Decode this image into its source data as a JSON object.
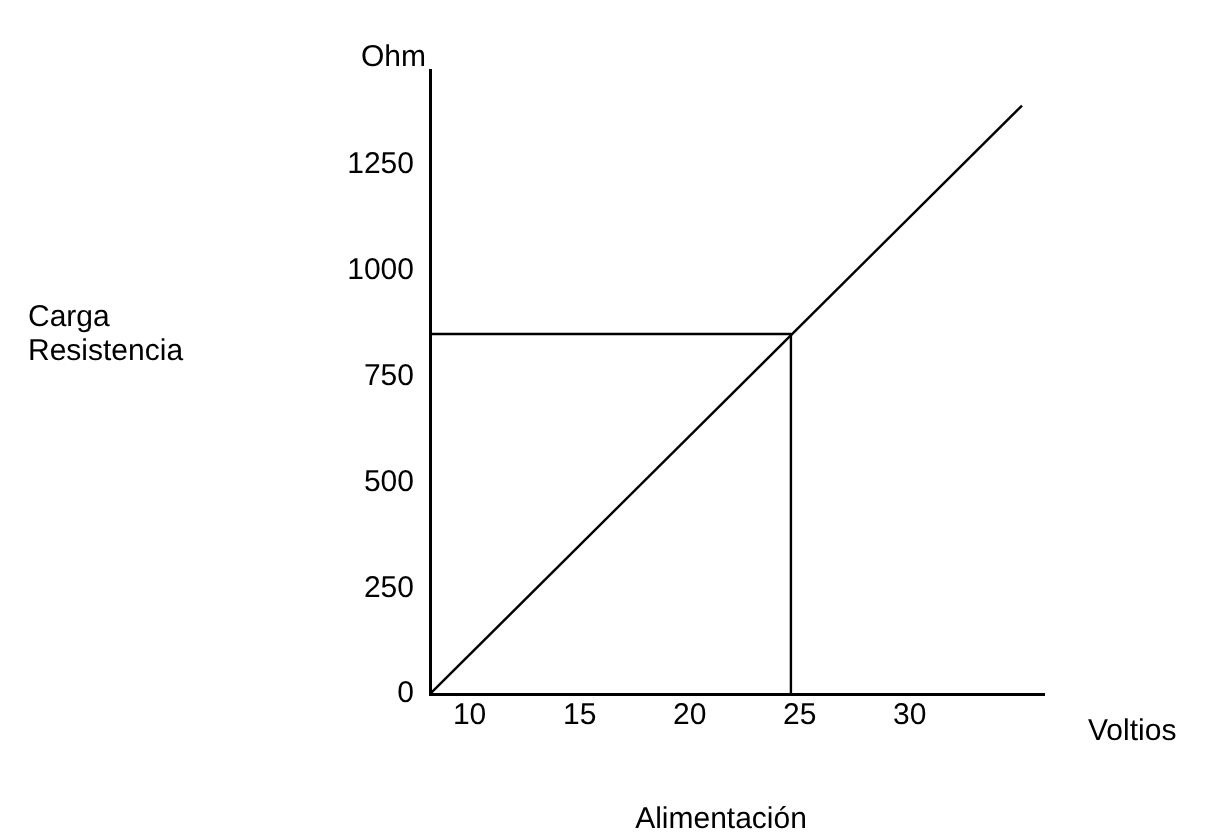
{
  "chart_data": {
    "type": "line",
    "xlabel": "Voltios",
    "ylabel": "Ohm",
    "annotations": [
      "Carga Resistencia",
      "Alimentación"
    ],
    "series": [
      {
        "color": "#000000",
        "x": [
          8.2,
          35.1
        ],
        "values": [
          0,
          1391
        ]
      },
      {
        "color": "#000000",
        "x": [
          8.2,
          24.6,
          24.6
        ],
        "values": [
          851,
          851,
          0
        ]
      }
    ],
    "xlim": [
      8.2,
      36.1
    ],
    "xticks": [
      10,
      15,
      20,
      25,
      30
    ],
    "ylim": [
      0,
      1475
    ],
    "yticks": [
      0,
      250,
      500,
      750,
      1000,
      1250
    ],
    "grid": false,
    "legend": false,
    "marker": "none",
    "line_style": "solid"
  }
}
